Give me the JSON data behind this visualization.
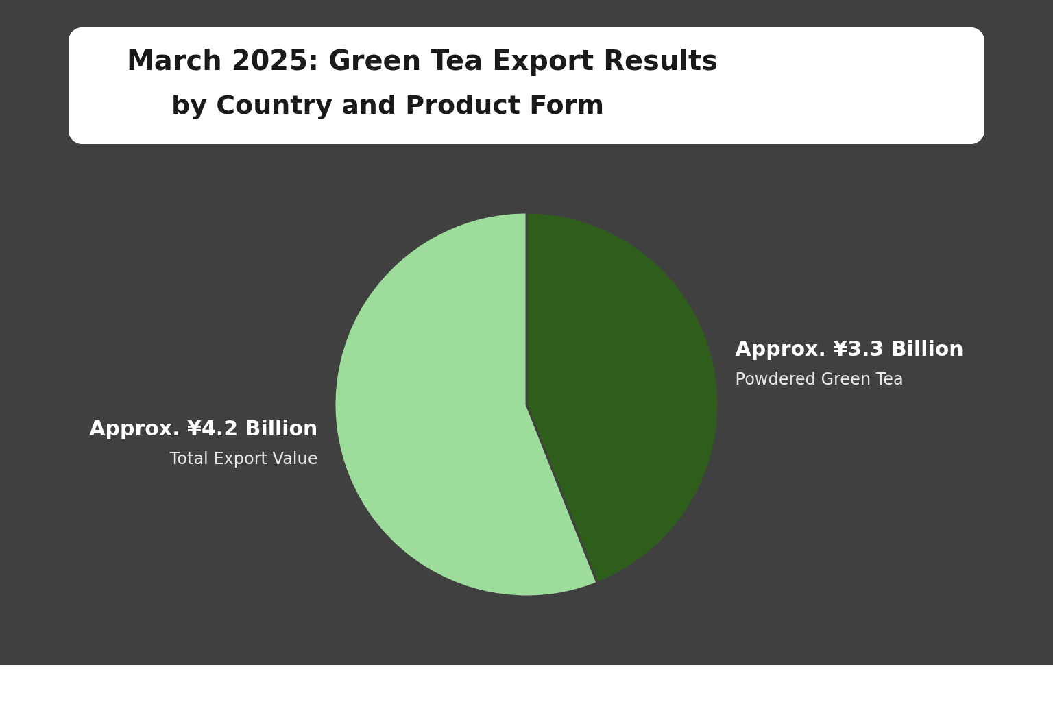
{
  "chart_data": {
    "type": "pie",
    "title": "March 2025: Green Tea Export Results",
    "subtitle": "by Country and Product Form",
    "categories": [
      "Powdered Green Tea",
      "Total Export Value"
    ],
    "values": [
      3.3,
      4.2
    ],
    "colors": [
      "#2f5e1c",
      "#9ddc9b"
    ],
    "value_labels": [
      "Approx. ¥3.3 Billion",
      "Approx. ¥4.2 Billion"
    ],
    "legend": false
  }
}
